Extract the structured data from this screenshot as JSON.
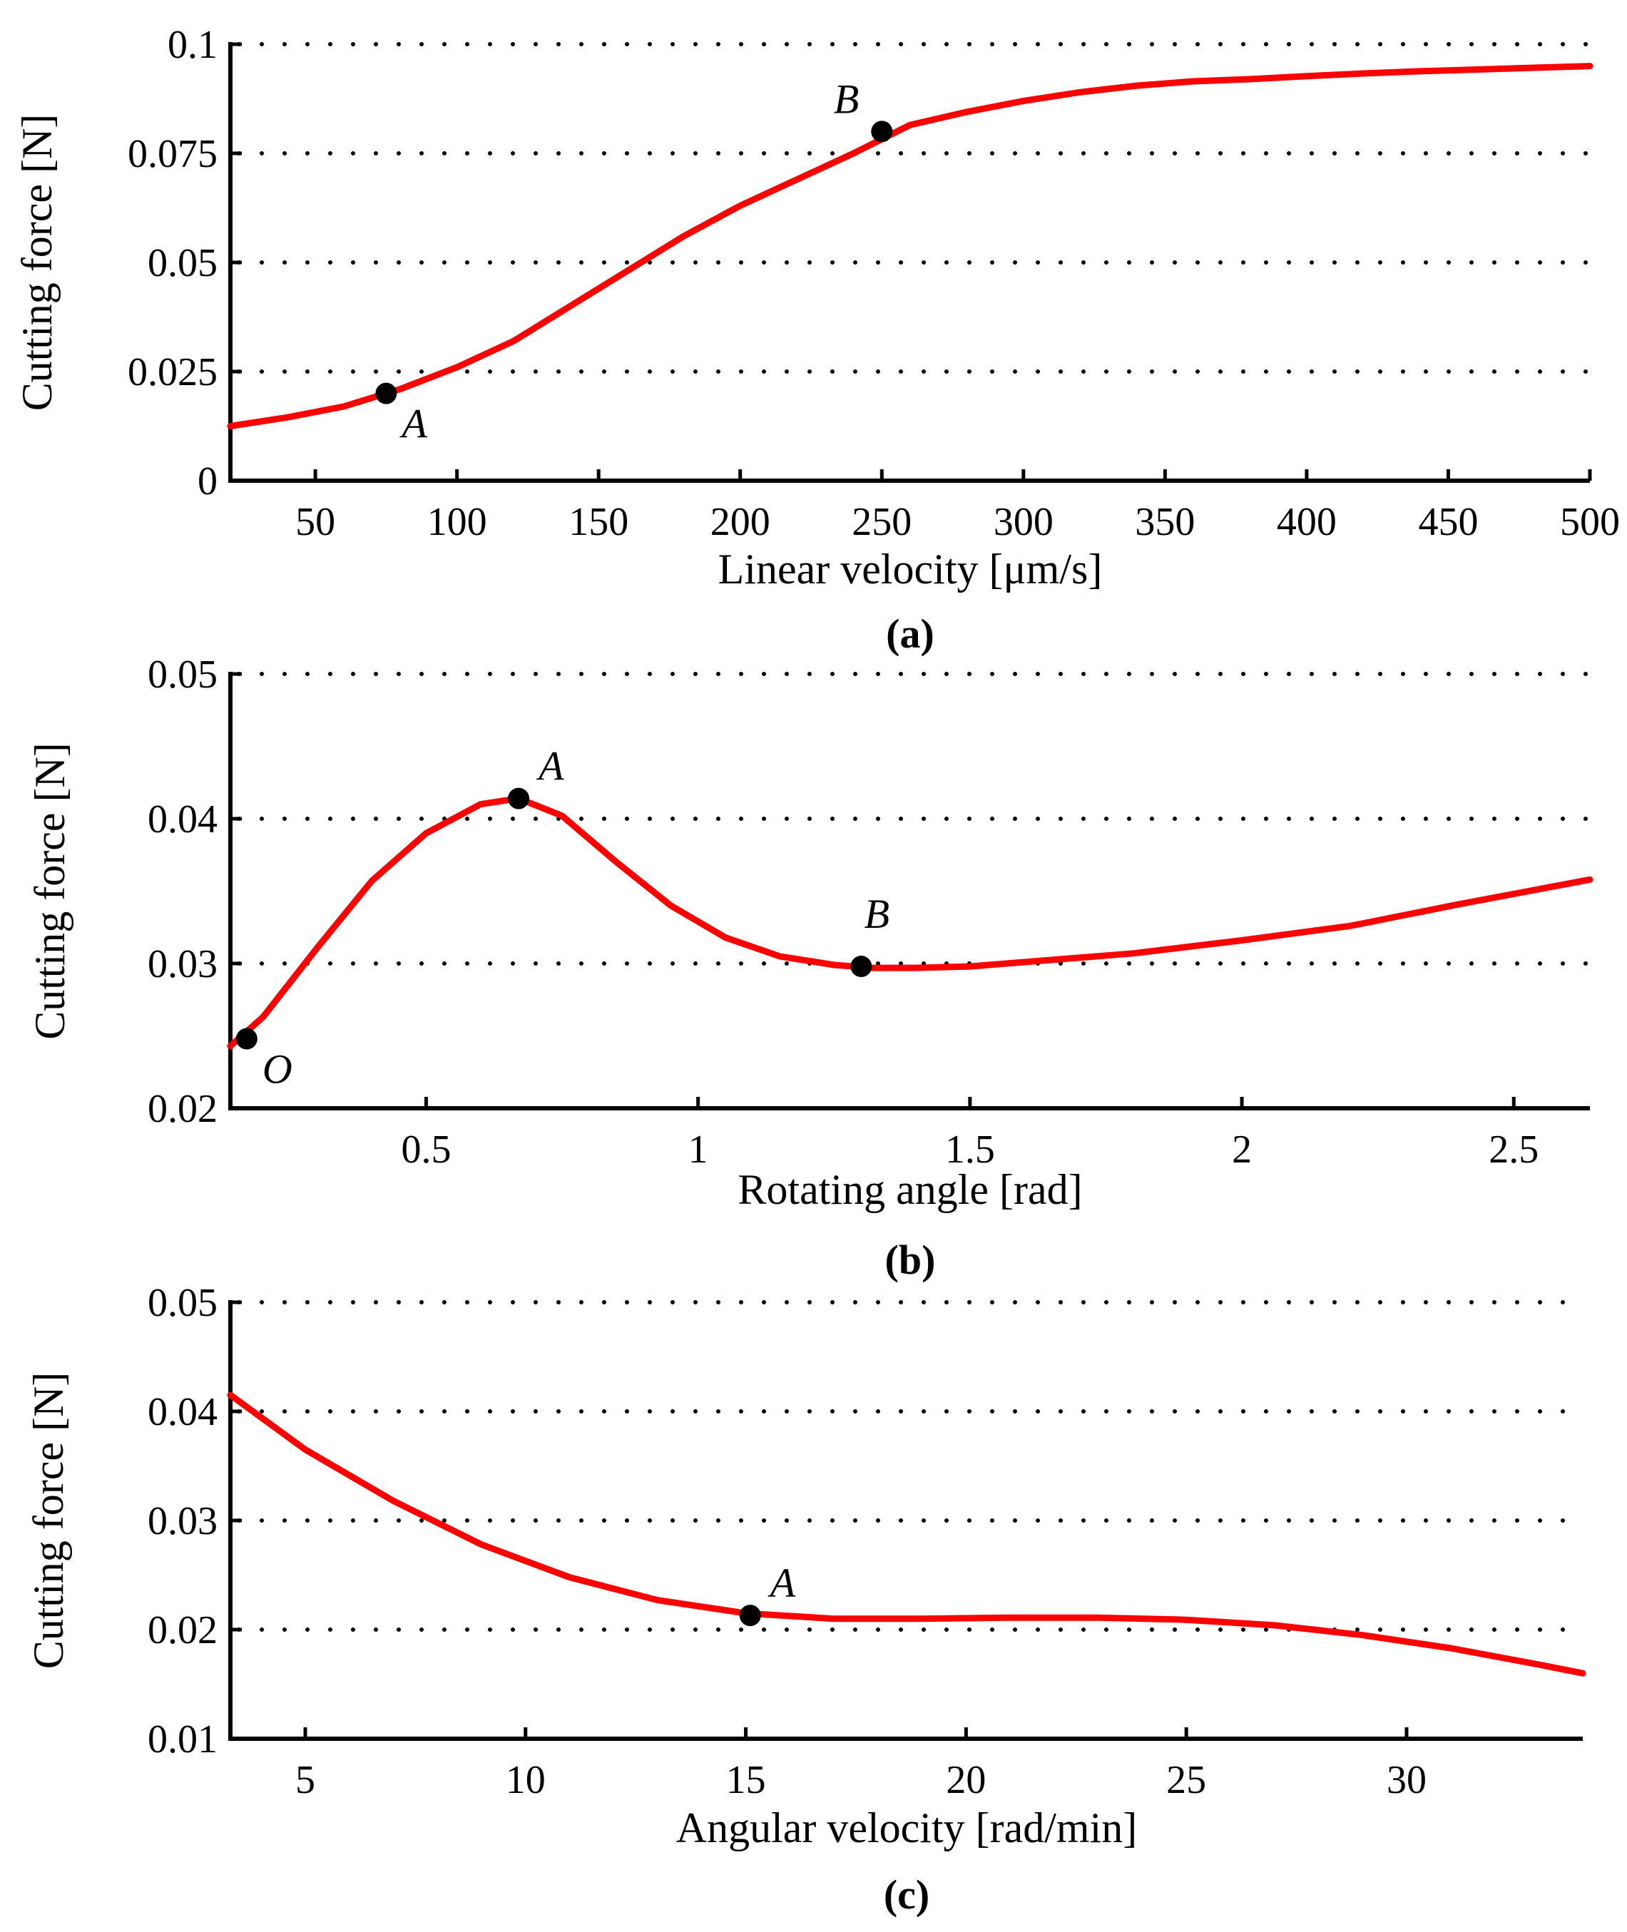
{
  "chart_data": [
    {
      "type": "line",
      "panel_label": "(a)",
      "xlabel": "Linear velocity [μm/s]",
      "ylabel": "Cutting force [N]",
      "xlim": [
        20,
        500
      ],
      "ylim": [
        0,
        0.1
      ],
      "xticks": [
        50,
        100,
        150,
        200,
        250,
        300,
        350,
        400,
        450,
        500
      ],
      "xtick_labels": [
        "50",
        "100",
        "150",
        "200",
        "250",
        "300",
        "350",
        "400",
        "450",
        "500"
      ],
      "yticks": [
        0,
        0.025,
        0.05,
        0.075,
        0.1
      ],
      "ytick_labels": [
        "0",
        "0.025",
        "0.05",
        "0.075",
        "0.1"
      ],
      "grid": "horizontal-dotted",
      "series": [
        {
          "name": "cutting force",
          "color": "#ff0000",
          "x": [
            20,
            40,
            60,
            80,
            100,
            120,
            140,
            160,
            180,
            200,
            220,
            240,
            260,
            280,
            300,
            320,
            340,
            360,
            380,
            400,
            420,
            440,
            460,
            480,
            500
          ],
          "y": [
            0.0125,
            0.0145,
            0.017,
            0.021,
            0.026,
            0.032,
            0.04,
            0.048,
            0.056,
            0.063,
            0.069,
            0.075,
            0.0815,
            0.0845,
            0.087,
            0.089,
            0.0905,
            0.0915,
            0.092,
            0.0927,
            0.0933,
            0.0938,
            0.0942,
            0.0946,
            0.095
          ]
        }
      ],
      "points": [
        {
          "label": "A",
          "x": 75,
          "y": 0.02,
          "label_pos": "below-right"
        },
        {
          "label": "B",
          "x": 250,
          "y": 0.08,
          "label_pos": "above-left"
        }
      ]
    },
    {
      "type": "line",
      "panel_label": "(b)",
      "xlabel": "Rotating angle [rad]",
      "ylabel": "Cutting force [N]",
      "xlim": [
        0.14,
        2.64
      ],
      "ylim": [
        0.02,
        0.05
      ],
      "xticks": [
        0.5,
        1,
        1.5,
        2,
        2.5
      ],
      "xtick_labels": [
        "0.5",
        "1",
        "1.5",
        "2",
        "2.5"
      ],
      "yticks": [
        0.02,
        0.03,
        0.04,
        0.05
      ],
      "ytick_labels": [
        "0.02",
        "0.03",
        "0.04",
        "0.05"
      ],
      "grid": "horizontal-dotted",
      "series": [
        {
          "name": "cutting force",
          "color": "#ff0000",
          "x": [
            0.14,
            0.2,
            0.3,
            0.4,
            0.5,
            0.6,
            0.67,
            0.75,
            0.85,
            0.95,
            1.05,
            1.15,
            1.25,
            1.32,
            1.4,
            1.5,
            1.6,
            1.8,
            2.0,
            2.2,
            2.4,
            2.64
          ],
          "y": [
            0.0243,
            0.0263,
            0.0311,
            0.0357,
            0.039,
            0.041,
            0.0414,
            0.0402,
            0.037,
            0.034,
            0.0318,
            0.0305,
            0.0299,
            0.0297,
            0.0297,
            0.0298,
            0.0301,
            0.0307,
            0.0316,
            0.0326,
            0.0341,
            0.0358
          ]
        }
      ],
      "points": [
        {
          "label": "O",
          "x": 0.17,
          "y": 0.0248,
          "label_pos": "below-right"
        },
        {
          "label": "A",
          "x": 0.67,
          "y": 0.0414,
          "label_pos": "above-right"
        },
        {
          "label": "B",
          "x": 1.3,
          "y": 0.0298,
          "label_pos": "above"
        }
      ]
    },
    {
      "type": "line",
      "panel_label": "(c)",
      "xlabel": "Angular velocity [rad/min]",
      "ylabel": "Cutting force [N]",
      "xlim": [
        3.3,
        34
      ],
      "ylim": [
        0.01,
        0.05
      ],
      "xticks": [
        5,
        10,
        15,
        20,
        25,
        30
      ],
      "xtick_labels": [
        "5",
        "10",
        "15",
        "20",
        "25",
        "30"
      ],
      "yticks": [
        0.01,
        0.02,
        0.03,
        0.04,
        0.05
      ],
      "ytick_labels": [
        "0.01",
        "0.02",
        "0.03",
        "0.04",
        "0.05"
      ],
      "grid": "horizontal-dotted",
      "series": [
        {
          "name": "cutting force",
          "color": "#ff0000",
          "x": [
            3.3,
            5,
            7,
            9,
            11,
            13,
            15,
            17,
            19,
            21,
            23,
            25,
            27,
            29,
            31,
            33,
            34
          ],
          "y": [
            0.0415,
            0.0365,
            0.0318,
            0.0278,
            0.0248,
            0.0227,
            0.0215,
            0.021,
            0.021,
            0.0211,
            0.0211,
            0.0209,
            0.0204,
            0.0195,
            0.0183,
            0.0168,
            0.016
          ]
        }
      ],
      "points": [
        {
          "label": "A",
          "x": 15.1,
          "y": 0.0213,
          "label_pos": "above-right"
        }
      ]
    }
  ]
}
